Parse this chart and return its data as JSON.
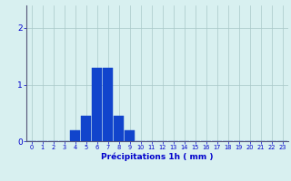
{
  "hours": [
    0,
    1,
    2,
    3,
    4,
    5,
    6,
    7,
    8,
    9,
    10,
    11,
    12,
    13,
    14,
    15,
    16,
    17,
    18,
    19,
    20,
    21,
    22,
    23
  ],
  "values": [
    0,
    0,
    0,
    0,
    0.2,
    0.45,
    1.3,
    1.3,
    0.45,
    0.2,
    0,
    0,
    0,
    0,
    0,
    0,
    0,
    0,
    0,
    0,
    0,
    0,
    0,
    0
  ],
  "bar_color": "#1144cc",
  "bar_edge_color": "#1144cc",
  "background_color": "#d8f0f0",
  "grid_color": "#aac8c8",
  "axis_color": "#555577",
  "tick_color": "#0000cc",
  "xlabel": "Précipitations 1h ( mm )",
  "xlabel_fontsize": 6.5,
  "xlabel_color": "#0000cc",
  "yticks": [
    0,
    1,
    2
  ],
  "xlim": [
    -0.5,
    23.5
  ],
  "ylim": [
    0,
    2.4
  ],
  "xtick_fontsize": 4.8,
  "ytick_fontsize": 6.5
}
